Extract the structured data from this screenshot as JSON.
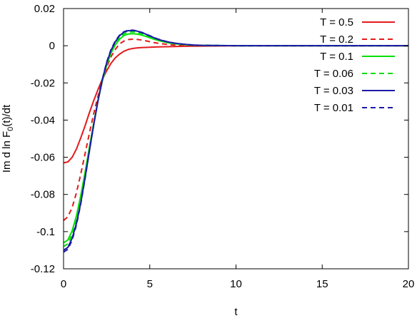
{
  "chart_data": {
    "type": "line",
    "xlabel": "t",
    "ylabel_prefix": "Im d ln F",
    "ylabel_sub": "0",
    "ylabel_suffix": "(t)/dt",
    "xlim": [
      0,
      20
    ],
    "ylim": [
      -0.12,
      0.02
    ],
    "xticks": [
      0,
      5,
      10,
      15,
      20
    ],
    "yticks": [
      -0.12,
      -0.1,
      -0.08,
      -0.06,
      -0.04,
      -0.02,
      0,
      0.02
    ],
    "xtick_labels": [
      "0",
      "5",
      "10",
      "15",
      "20"
    ],
    "ytick_labels": [
      "-0.12",
      "-0.1",
      "-0.08",
      "-0.06",
      "-0.04",
      "-0.02",
      "0",
      "0.02"
    ],
    "grid": false,
    "legend_position": "top-right",
    "series": [
      {
        "name": "T = 0.5",
        "color": "#e41a1c",
        "dash": "solid",
        "x": [
          0,
          0.25,
          0.5,
          0.75,
          1,
          1.25,
          1.5,
          1.75,
          2,
          2.25,
          2.5,
          2.75,
          3,
          3.25,
          3.5,
          3.75,
          4,
          4.25,
          4.5,
          5,
          5.5,
          6,
          7,
          8,
          9,
          10,
          11,
          12,
          14,
          16,
          18,
          20
        ],
        "y": [
          -0.063,
          -0.0625,
          -0.06,
          -0.0555,
          -0.0495,
          -0.043,
          -0.036,
          -0.0295,
          -0.0235,
          -0.018,
          -0.0135,
          -0.0095,
          -0.0065,
          -0.0045,
          -0.003,
          -0.002,
          -0.0015,
          -0.0012,
          -0.001,
          -0.0008,
          -0.0006,
          -0.0005,
          -0.0003,
          -0.0002,
          -0.0001,
          0,
          0,
          0,
          0,
          0,
          0,
          0
        ]
      },
      {
        "name": "T = 0.2",
        "color": "#e41a1c",
        "dash": "dashed",
        "x": [
          0,
          0.25,
          0.5,
          0.75,
          1,
          1.25,
          1.5,
          1.75,
          2,
          2.25,
          2.5,
          2.75,
          3,
          3.25,
          3.5,
          3.75,
          4,
          4.25,
          4.5,
          4.75,
          5,
          5.25,
          5.5,
          6,
          6.5,
          7,
          8,
          9,
          10,
          12,
          14,
          16,
          18,
          20
        ],
        "y": [
          -0.094,
          -0.092,
          -0.087,
          -0.079,
          -0.069,
          -0.058,
          -0.047,
          -0.0365,
          -0.027,
          -0.0185,
          -0.0115,
          -0.006,
          -0.002,
          0.001,
          0.0025,
          0.0033,
          0.0035,
          0.0034,
          0.0031,
          0.0027,
          0.0022,
          0.0017,
          0.0013,
          0.0007,
          0.0003,
          0.0001,
          0,
          0,
          0,
          0,
          0,
          0,
          0,
          0
        ]
      },
      {
        "name": "T = 0.1",
        "color": "#00e000",
        "dash": "solid",
        "x": [
          0,
          0.25,
          0.5,
          0.75,
          1,
          1.25,
          1.5,
          1.75,
          2,
          2.25,
          2.5,
          2.75,
          3,
          3.25,
          3.5,
          3.75,
          4,
          4.25,
          4.5,
          4.75,
          5,
          5.25,
          5.5,
          6,
          6.5,
          7,
          7.5,
          8,
          9,
          10,
          12,
          14,
          16,
          18,
          20
        ],
        "y": [
          -0.106,
          -0.1045,
          -0.0995,
          -0.0915,
          -0.0805,
          -0.068,
          -0.0545,
          -0.0415,
          -0.0295,
          -0.019,
          -0.0105,
          -0.004,
          0.0005,
          0.0035,
          0.0055,
          0.0063,
          0.0065,
          0.0063,
          0.0058,
          0.0051,
          0.0043,
          0.0035,
          0.0028,
          0.0017,
          0.001,
          0.0006,
          0.0003,
          0.0002,
          0.0001,
          0,
          0,
          0,
          0,
          0,
          0
        ]
      },
      {
        "name": "T = 0.06",
        "color": "#00e000",
        "dash": "dashed",
        "x": [
          0,
          0.25,
          0.5,
          0.75,
          1,
          1.25,
          1.5,
          1.75,
          2,
          2.25,
          2.5,
          2.75,
          3,
          3.25,
          3.5,
          3.75,
          4,
          4.25,
          4.5,
          4.75,
          5,
          5.25,
          5.5,
          6,
          6.5,
          7,
          7.5,
          8,
          9,
          10,
          12,
          14,
          16,
          18,
          20
        ],
        "y": [
          -0.108,
          -0.1065,
          -0.1015,
          -0.0935,
          -0.0825,
          -0.0695,
          -0.0555,
          -0.042,
          -0.0295,
          -0.0185,
          -0.0098,
          -0.0032,
          0.0013,
          0.0045,
          0.0064,
          0.0073,
          0.0075,
          0.0072,
          0.0066,
          0.0058,
          0.0049,
          0.004,
          0.0032,
          0.002,
          0.0012,
          0.0007,
          0.0004,
          0.0002,
          0.0001,
          0,
          0,
          0,
          0,
          0,
          0
        ]
      },
      {
        "name": "T = 0.03",
        "color": "#1a1aa6",
        "dash": "solid",
        "x": [
          0,
          0.25,
          0.5,
          0.75,
          1,
          1.25,
          1.5,
          1.75,
          2,
          2.25,
          2.5,
          2.75,
          3,
          3.25,
          3.5,
          3.75,
          4,
          4.25,
          4.5,
          4.75,
          5,
          5.25,
          5.5,
          6,
          6.5,
          7,
          7.5,
          8,
          9,
          10,
          12,
          14,
          16,
          18,
          20
        ],
        "y": [
          -0.11,
          -0.1085,
          -0.1035,
          -0.0955,
          -0.0845,
          -0.071,
          -0.0565,
          -0.0425,
          -0.0295,
          -0.0182,
          -0.0092,
          -0.0025,
          0.0022,
          0.0054,
          0.0073,
          0.0081,
          0.0082,
          0.0079,
          0.0072,
          0.0063,
          0.0053,
          0.0043,
          0.0034,
          0.0021,
          0.0013,
          0.0008,
          0.0004,
          0.0002,
          0.0001,
          0,
          0,
          0,
          0,
          0,
          0
        ]
      },
      {
        "name": "T = 0.01",
        "color": "#1a1aa6",
        "dash": "dashed",
        "x": [
          0,
          0.25,
          0.5,
          0.75,
          1,
          1.25,
          1.5,
          1.75,
          2,
          2.25,
          2.5,
          2.75,
          3,
          3.25,
          3.5,
          3.75,
          4,
          4.25,
          4.5,
          4.75,
          5,
          5.25,
          5.5,
          6,
          6.5,
          7,
          7.5,
          8,
          9,
          10,
          12,
          14,
          16,
          18,
          20
        ],
        "y": [
          -0.111,
          -0.1095,
          -0.1045,
          -0.0963,
          -0.085,
          -0.0713,
          -0.0566,
          -0.0424,
          -0.0293,
          -0.0179,
          -0.0088,
          -0.0021,
          0.0026,
          0.0057,
          0.0075,
          0.0083,
          0.0084,
          0.008,
          0.0073,
          0.0064,
          0.0054,
          0.0044,
          0.0035,
          0.0022,
          0.0013,
          0.0008,
          0.0004,
          0.0002,
          0.0001,
          0,
          0,
          0,
          0,
          0,
          0
        ]
      }
    ]
  }
}
